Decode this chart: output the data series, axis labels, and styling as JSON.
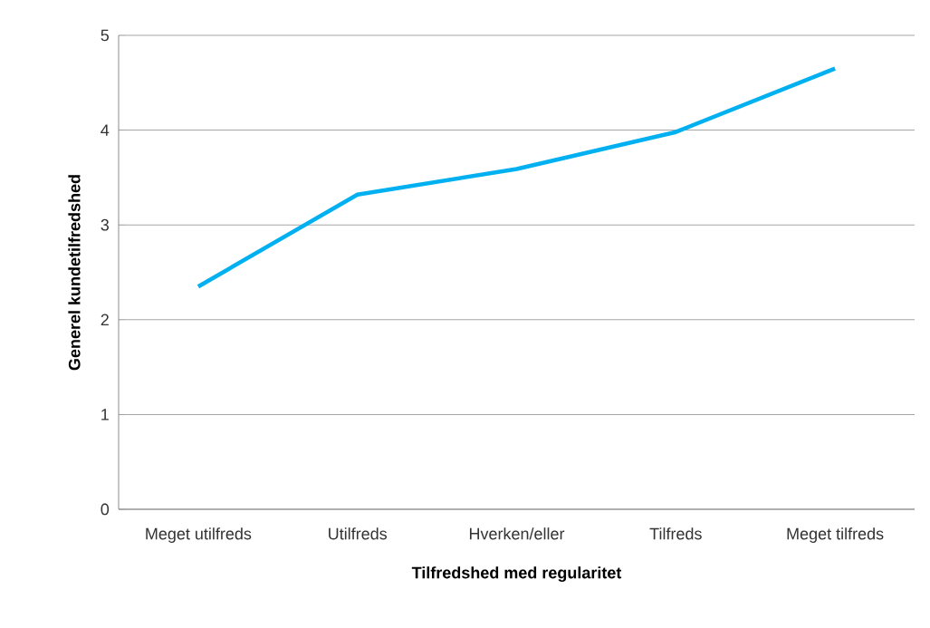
{
  "chart_data": {
    "type": "line",
    "xlabel": "Tilfredshed med regularitet",
    "ylabel": "Generel kundetilfredshed",
    "categories": [
      "Meget utilfreds",
      "Utilfreds",
      "Hverken/eller",
      "Tilfreds",
      "Meget tilfreds"
    ],
    "series": [
      {
        "color": "#00b0f0",
        "values": [
          2.35,
          3.32,
          3.59,
          3.98,
          4.65
        ]
      }
    ],
    "ylim": [
      0,
      5
    ],
    "yticks": [
      0,
      1,
      2,
      3,
      4,
      5
    ],
    "grid": "y",
    "marker": "none",
    "line_style": "solid"
  }
}
